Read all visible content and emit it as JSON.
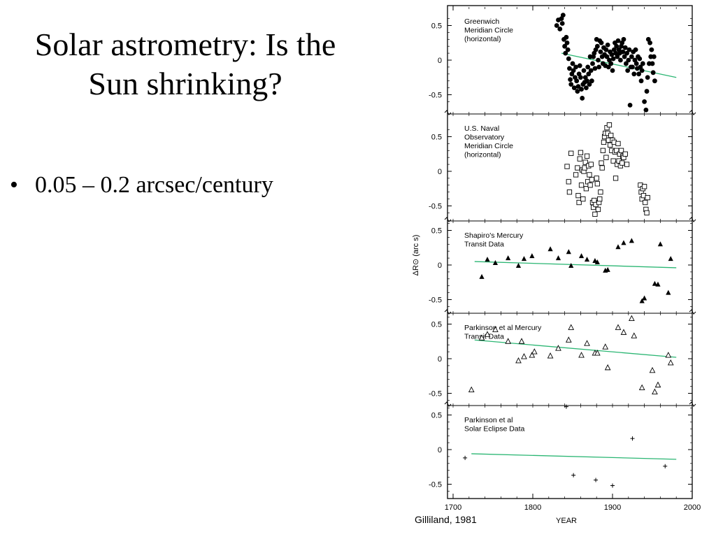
{
  "slide": {
    "title": "Solar astrometry: Is the Sun shrinking?",
    "bullets": [
      "0.05 – 0.2 arcsec/century"
    ],
    "citation": "Gilliland, 1981"
  },
  "chart_data": {
    "type": "scatter",
    "xlabel": "YEAR",
    "ylabel": "ΔR⊙ (arc s)",
    "xlim": [
      1700,
      2000
    ],
    "xticks": [
      1700,
      1800,
      1900,
      2000
    ],
    "ylim": [
      -0.7,
      0.7
    ],
    "yticks": [
      -0.5,
      0,
      0.5
    ],
    "ytick_labels": [
      "-0.5",
      "0",
      "0.5"
    ],
    "trend_color": "#2bb673",
    "panels": [
      {
        "label_lines": [
          "Greenwich",
          "Meridian Circle",
          "(horizontal)"
        ],
        "marker": "filled-circle",
        "trend": [
          [
            1836,
            0.1
          ],
          [
            1980,
            -0.25
          ]
        ],
        "points": [
          [
            1830,
            0.5
          ],
          [
            1832,
            0.58
          ],
          [
            1834,
            0.45
          ],
          [
            1836,
            0.6
          ],
          [
            1837,
            0.53
          ],
          [
            1838,
            0.65
          ],
          [
            1839,
            0.3
          ],
          [
            1840,
            0.2
          ],
          [
            1841,
            0.1
          ],
          [
            1842,
            0.33
          ],
          [
            1843,
            0.25
          ],
          [
            1844,
            0.15
          ],
          [
            1845,
            0.02
          ],
          [
            1846,
            -0.12
          ],
          [
            1847,
            -0.28
          ],
          [
            1848,
            -0.35
          ],
          [
            1849,
            -0.2
          ],
          [
            1850,
            -0.05
          ],
          [
            1851,
            -0.15
          ],
          [
            1852,
            -0.4
          ],
          [
            1853,
            -0.25
          ],
          [
            1854,
            -0.1
          ],
          [
            1855,
            -0.3
          ],
          [
            1856,
            -0.45
          ],
          [
            1857,
            -0.38
          ],
          [
            1858,
            -0.2
          ],
          [
            1859,
            -0.08
          ],
          [
            1860,
            -0.25
          ],
          [
            1861,
            -0.42
          ],
          [
            1862,
            -0.55
          ],
          [
            1863,
            -0.35
          ],
          [
            1864,
            -0.15
          ],
          [
            1865,
            -0.32
          ],
          [
            1866,
            -0.25
          ],
          [
            1867,
            -0.4
          ],
          [
            1868,
            -0.3
          ],
          [
            1869,
            -0.1
          ],
          [
            1870,
            -0.2
          ],
          [
            1871,
            -0.35
          ],
          [
            1872,
            0.05
          ],
          [
            1873,
            -0.15
          ],
          [
            1874,
            -0.3
          ],
          [
            1875,
            -0.05
          ],
          [
            1876,
            0.05
          ],
          [
            1877,
            0.1
          ],
          [
            1878,
            -0.12
          ],
          [
            1879,
            0.15
          ],
          [
            1880,
            0.3
          ],
          [
            1881,
            0.2
          ],
          [
            1882,
            0.0
          ],
          [
            1883,
            -0.1
          ],
          [
            1884,
            0.28
          ],
          [
            1885,
            0.12
          ],
          [
            1886,
            0.25
          ],
          [
            1887,
            0.05
          ],
          [
            1888,
            -0.05
          ],
          [
            1889,
            0.18
          ],
          [
            1890,
            0.08
          ],
          [
            1891,
            -0.08
          ],
          [
            1892,
            0.15
          ],
          [
            1893,
            0.05
          ],
          [
            1894,
            0.22
          ],
          [
            1895,
            -0.1
          ],
          [
            1896,
            0.0
          ],
          [
            1897,
            0.12
          ],
          [
            1898,
            -0.05
          ],
          [
            1899,
            0.08
          ],
          [
            1900,
            -0.15
          ],
          [
            1901,
            0.02
          ],
          [
            1902,
            0.15
          ],
          [
            1903,
            0.25
          ],
          [
            1904,
            0.1
          ],
          [
            1905,
            0.2
          ],
          [
            1906,
            0.05
          ],
          [
            1907,
            0.28
          ],
          [
            1908,
            0.15
          ],
          [
            1909,
            0.1
          ],
          [
            1910,
            0.0
          ],
          [
            1911,
            0.2
          ],
          [
            1912,
            0.25
          ],
          [
            1913,
            0.12
          ],
          [
            1914,
            0.3
          ],
          [
            1915,
            0.05
          ],
          [
            1916,
            0.18
          ],
          [
            1917,
            -0.05
          ],
          [
            1918,
            0.1
          ],
          [
            1919,
            -0.15
          ],
          [
            1920,
            0.0
          ],
          [
            1921,
            0.15
          ],
          [
            1922,
            -0.65
          ],
          [
            1923,
            -0.1
          ],
          [
            1924,
            0.05
          ],
          [
            1925,
            -0.1
          ],
          [
            1926,
            0.12
          ],
          [
            1927,
            -0.2
          ],
          [
            1928,
            0.0
          ],
          [
            1929,
            0.15
          ],
          [
            1930,
            -0.05
          ],
          [
            1931,
            -0.12
          ],
          [
            1932,
            0.05
          ],
          [
            1933,
            -0.2
          ],
          [
            1934,
            0.02
          ],
          [
            1935,
            -0.1
          ],
          [
            1936,
            -0.3
          ],
          [
            1937,
            -0.15
          ],
          [
            1938,
            -0.05
          ],
          [
            1940,
            -0.6
          ],
          [
            1942,
            -0.72
          ],
          [
            1943,
            -0.45
          ],
          [
            1944,
            -0.25
          ],
          [
            1945,
            0.3
          ],
          [
            1946,
            -0.05
          ],
          [
            1947,
            0.25
          ],
          [
            1948,
            0.05
          ],
          [
            1949,
            0.15
          ],
          [
            1950,
            -0.05
          ],
          [
            1951,
            -0.18
          ],
          [
            1952,
            0.05
          ],
          [
            1953,
            -0.3
          ]
        ]
      },
      {
        "label_lines": [
          "U.S. Naval",
          "Observatory",
          "Meridian Circle",
          "(horizontal)"
        ],
        "marker": "open-square",
        "points": [
          [
            1843,
            0.07
          ],
          [
            1845,
            -0.15
          ],
          [
            1846,
            -0.3
          ],
          [
            1848,
            0.26
          ],
          [
            1854,
            -0.05
          ],
          [
            1856,
            0.05
          ],
          [
            1857,
            -0.35
          ],
          [
            1858,
            -0.45
          ],
          [
            1859,
            0.18
          ],
          [
            1860,
            0.27
          ],
          [
            1861,
            -0.2
          ],
          [
            1862,
            0.02
          ],
          [
            1863,
            -0.4
          ],
          [
            1864,
            0.0
          ],
          [
            1865,
            0.05
          ],
          [
            1866,
            0.13
          ],
          [
            1867,
            -0.25
          ],
          [
            1868,
            0.22
          ],
          [
            1869,
            -0.15
          ],
          [
            1870,
            0.08
          ],
          [
            1871,
            -0.05
          ],
          [
            1872,
            -0.2
          ],
          [
            1873,
            0.1
          ],
          [
            1874,
            -0.12
          ],
          [
            1875,
            -0.45
          ],
          [
            1876,
            -0.52
          ],
          [
            1877,
            -0.42
          ],
          [
            1878,
            -0.62
          ],
          [
            1879,
            -0.48
          ],
          [
            1880,
            -0.1
          ],
          [
            1881,
            -0.18
          ],
          [
            1882,
            -0.55
          ],
          [
            1883,
            -0.45
          ],
          [
            1884,
            -0.4
          ],
          [
            1885,
            -0.3
          ],
          [
            1886,
            0.12
          ],
          [
            1887,
            0.05
          ],
          [
            1888,
            0.3
          ],
          [
            1889,
            0.42
          ],
          [
            1890,
            0.5
          ],
          [
            1891,
            0.55
          ],
          [
            1892,
            0.2
          ],
          [
            1893,
            0.63
          ],
          [
            1894,
            0.55
          ],
          [
            1895,
            0.45
          ],
          [
            1896,
            0.67
          ],
          [
            1897,
            0.38
          ],
          [
            1898,
            0.52
          ],
          [
            1899,
            0.3
          ],
          [
            1900,
            0.45
          ],
          [
            1901,
            0.15
          ],
          [
            1902,
            0.42
          ],
          [
            1903,
            0.28
          ],
          [
            1904,
            -0.1
          ],
          [
            1905,
            0.3
          ],
          [
            1906,
            0.1
          ],
          [
            1907,
            0.4
          ],
          [
            1908,
            0.15
          ],
          [
            1909,
            0.25
          ],
          [
            1910,
            0.08
          ],
          [
            1911,
            0.3
          ],
          [
            1912,
            0.12
          ],
          [
            1913,
            0.22
          ],
          [
            1914,
            0.2
          ],
          [
            1916,
            0.25
          ],
          [
            1918,
            0.1
          ],
          [
            1935,
            -0.2
          ],
          [
            1936,
            -0.3
          ],
          [
            1937,
            -0.4
          ],
          [
            1938,
            -0.25
          ],
          [
            1939,
            -0.35
          ],
          [
            1940,
            -0.22
          ],
          [
            1941,
            -0.45
          ],
          [
            1942,
            -0.55
          ],
          [
            1943,
            -0.6
          ],
          [
            1944,
            -0.38
          ]
        ]
      },
      {
        "label_lines": [
          "Shapiro's Mercury",
          "Transit Data"
        ],
        "marker": "filled-triangle",
        "trend": [
          [
            1727,
            0.05
          ],
          [
            1980,
            -0.04
          ]
        ],
        "points": [
          [
            1736,
            -0.17
          ],
          [
            1743,
            0.08
          ],
          [
            1753,
            0.03
          ],
          [
            1769,
            0.1
          ],
          [
            1782,
            -0.01
          ],
          [
            1789,
            0.09
          ],
          [
            1799,
            0.13
          ],
          [
            1822,
            0.23
          ],
          [
            1832,
            0.1
          ],
          [
            1845,
            0.19
          ],
          [
            1848,
            -0.01
          ],
          [
            1861,
            0.13
          ],
          [
            1868,
            0.08
          ],
          [
            1878,
            0.06
          ],
          [
            1881,
            0.04
          ],
          [
            1891,
            -0.08
          ],
          [
            1894,
            -0.07
          ],
          [
            1907,
            0.26
          ],
          [
            1914,
            0.32
          ],
          [
            1924,
            0.35
          ],
          [
            1937,
            -0.52
          ],
          [
            1940,
            -0.48
          ],
          [
            1953,
            -0.27
          ],
          [
            1957,
            -0.28
          ],
          [
            1960,
            0.3
          ],
          [
            1970,
            -0.4
          ],
          [
            1973,
            0.09
          ]
        ]
      },
      {
        "label_lines": [
          "Parkinson et al Mercury",
          "Transit Data"
        ],
        "marker": "open-triangle",
        "trend": [
          [
            1727,
            0.27
          ],
          [
            1980,
            0.02
          ]
        ],
        "points": [
          [
            1723,
            -0.45
          ],
          [
            1736,
            0.3
          ],
          [
            1743,
            0.35
          ],
          [
            1753,
            0.42
          ],
          [
            1769,
            0.25
          ],
          [
            1782,
            -0.03
          ],
          [
            1786,
            0.25
          ],
          [
            1789,
            0.03
          ],
          [
            1799,
            0.05
          ],
          [
            1802,
            0.1
          ],
          [
            1822,
            0.04
          ],
          [
            1832,
            0.15
          ],
          [
            1845,
            0.27
          ],
          [
            1848,
            0.45
          ],
          [
            1861,
            0.05
          ],
          [
            1868,
            0.22
          ],
          [
            1878,
            0.08
          ],
          [
            1881,
            0.08
          ],
          [
            1891,
            0.17
          ],
          [
            1894,
            -0.13
          ],
          [
            1907,
            0.45
          ],
          [
            1914,
            0.38
          ],
          [
            1924,
            0.58
          ],
          [
            1927,
            0.33
          ],
          [
            1937,
            -0.42
          ],
          [
            1950,
            -0.17
          ],
          [
            1953,
            -0.48
          ],
          [
            1957,
            -0.38
          ],
          [
            1970,
            0.05
          ],
          [
            1973,
            -0.06
          ]
        ]
      },
      {
        "label_lines": [
          "Parkinson et al",
          "Solar Eclipse Data"
        ],
        "marker": "plus",
        "trend": [
          [
            1723,
            -0.06
          ],
          [
            1980,
            -0.14
          ]
        ],
        "points": [
          [
            1715,
            -0.12
          ],
          [
            1842,
            0.62
          ],
          [
            1851,
            -0.37
          ],
          [
            1879,
            -0.44
          ],
          [
            1900,
            -0.52
          ],
          [
            1925,
            0.16
          ],
          [
            1966,
            -0.24
          ]
        ]
      }
    ]
  }
}
